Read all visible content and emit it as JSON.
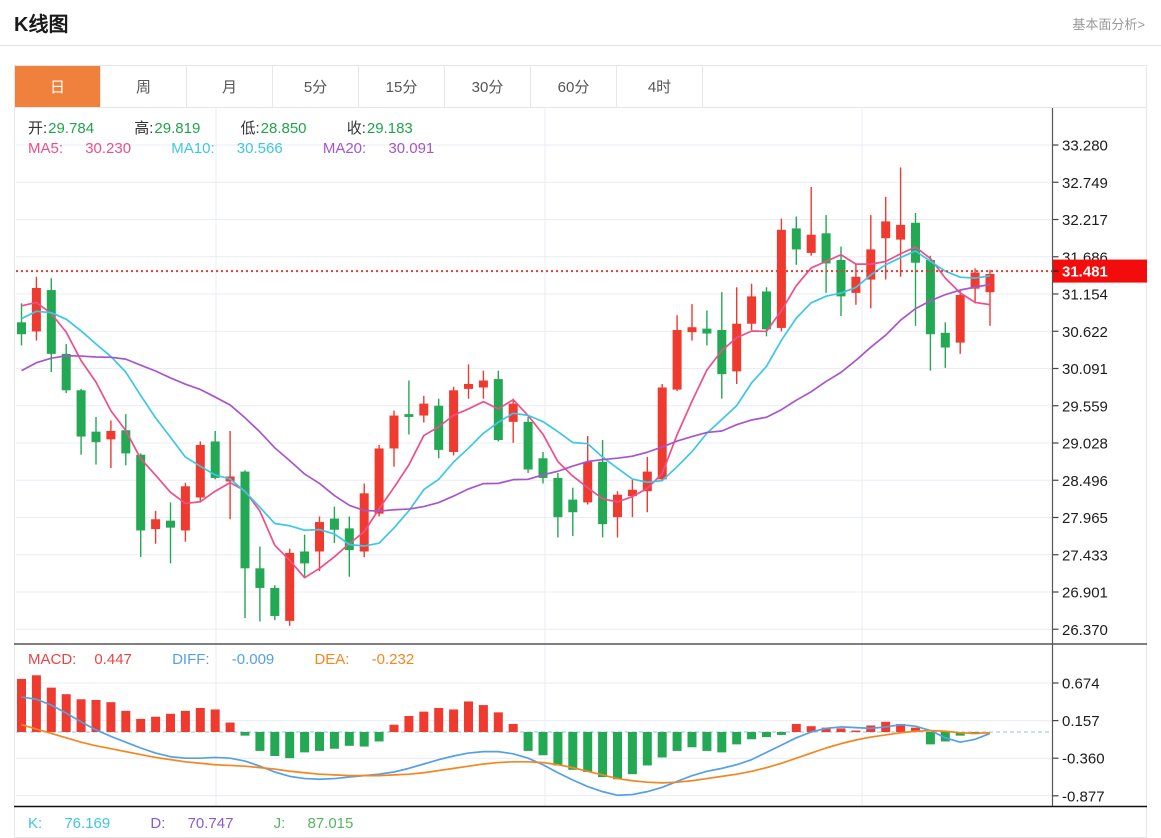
{
  "header": {
    "title": "K线图",
    "link": "基本面分析>"
  },
  "tabs": {
    "items": [
      "日",
      "周",
      "月",
      "5分",
      "15分",
      "30分",
      "60分",
      "4时"
    ],
    "active_index": 0
  },
  "legend": {
    "open_label": "开:",
    "open": "29.784",
    "high_label": "高:",
    "high": "29.819",
    "low_label": "低:",
    "low": "28.850",
    "close_label": "收:",
    "close": "29.183",
    "ma5_label": "MA5: ",
    "ma5": "30.230",
    "ma10_label": "MA10: ",
    "ma10": "30.566",
    "ma20_label": "MA20: ",
    "ma20": "30.091"
  },
  "macd_legend": {
    "macd_label": "MACD:",
    "macd": "0.447",
    "diff_label": "DIFF: ",
    "diff": "-0.009",
    "dea_label": "DEA: ",
    "dea": "-0.232"
  },
  "kdj_legend": {
    "k_label": "K: ",
    "k": "76.169",
    "d_label": "D: ",
    "d": "70.747",
    "j_label": "J: ",
    "j": "87.015"
  },
  "price_marker": {
    "value": "31.481"
  },
  "colors": {
    "up": "#ef3a2f",
    "down": "#23a854",
    "ma5": "#ec4f8c",
    "ma10": "#3cc6e8",
    "ma20": "#a656cc",
    "diff": "#54a0e8",
    "dea": "#f5861f",
    "price_line": "#f5352b",
    "price_label_bg": "#f20c0c",
    "grid": "#e9eef5",
    "vgrid": "#e9eef5",
    "axis_line": "#555555",
    "axis_text": "#1c1c1c",
    "pane_border": "#333333",
    "zero_dash": "#9fd4e8"
  },
  "chart_data": {
    "type": "candlestick",
    "title": "K线图 日K",
    "y_axis": {
      "ticks": [
        "33.280",
        "32.749",
        "32.217",
        "31.686",
        "31.154",
        "30.622",
        "30.091",
        "29.559",
        "29.028",
        "28.496",
        "27.965",
        "27.433",
        "26.901",
        "26.370"
      ],
      "max": 33.28,
      "min": 26.37,
      "step": 0.5315
    },
    "current_price": 31.481,
    "candles_ohlc_format": [
      "open",
      "close",
      "low",
      "high"
    ],
    "candles": [
      [
        30.75,
        30.58,
        30.42,
        31.02
      ],
      [
        30.62,
        31.24,
        30.49,
        31.4
      ],
      [
        31.21,
        30.3,
        30.04,
        31.38
      ],
      [
        30.3,
        29.78,
        29.74,
        30.44
      ],
      [
        29.78,
        29.12,
        28.86,
        29.8
      ],
      [
        29.19,
        29.04,
        28.72,
        29.4
      ],
      [
        29.08,
        29.2,
        28.67,
        29.35
      ],
      [
        29.21,
        28.88,
        28.71,
        29.44
      ],
      [
        28.86,
        27.78,
        27.4,
        28.88
      ],
      [
        27.8,
        27.94,
        27.59,
        28.06
      ],
      [
        27.92,
        27.82,
        27.31,
        28.18
      ],
      [
        27.78,
        28.41,
        27.62,
        28.46
      ],
      [
        28.25,
        29.0,
        28.18,
        29.05
      ],
      [
        29.05,
        28.53,
        28.51,
        29.2
      ],
      [
        28.48,
        28.55,
        27.94,
        29.2
      ],
      [
        28.62,
        27.24,
        26.53,
        28.64
      ],
      [
        27.24,
        26.96,
        26.48,
        27.55
      ],
      [
        26.96,
        26.56,
        26.5,
        27.0
      ],
      [
        26.49,
        27.46,
        26.42,
        27.52
      ],
      [
        27.48,
        27.31,
        27.1,
        27.72
      ],
      [
        27.48,
        27.9,
        27.2,
        27.98
      ],
      [
        27.95,
        27.79,
        27.6,
        28.12
      ],
      [
        27.81,
        27.5,
        27.12,
        27.98
      ],
      [
        27.48,
        28.31,
        27.4,
        28.45
      ],
      [
        28.02,
        28.95,
        27.98,
        29.0
      ],
      [
        28.95,
        29.42,
        28.69,
        29.49
      ],
      [
        29.44,
        29.4,
        29.15,
        29.92
      ],
      [
        29.42,
        29.59,
        29.32,
        29.7
      ],
      [
        29.56,
        28.93,
        28.81,
        29.66
      ],
      [
        28.9,
        29.78,
        28.85,
        29.83
      ],
      [
        29.8,
        29.87,
        29.66,
        30.15
      ],
      [
        29.82,
        29.92,
        29.66,
        30.06
      ],
      [
        29.94,
        29.07,
        29.05,
        30.06
      ],
      [
        29.33,
        29.59,
        29.03,
        29.66
      ],
      [
        29.33,
        28.65,
        28.6,
        29.4
      ],
      [
        28.81,
        28.53,
        28.45,
        28.9
      ],
      [
        28.53,
        27.97,
        27.68,
        28.6
      ],
      [
        28.22,
        28.04,
        27.7,
        28.39
      ],
      [
        28.18,
        28.76,
        28.15,
        29.13
      ],
      [
        28.76,
        27.87,
        27.68,
        29.07
      ],
      [
        27.97,
        28.29,
        27.68,
        28.34
      ],
      [
        28.27,
        28.36,
        27.97,
        28.5
      ],
      [
        28.34,
        28.62,
        28.04,
        28.83
      ],
      [
        28.51,
        29.82,
        28.48,
        29.87
      ],
      [
        29.79,
        30.64,
        29.77,
        30.85
      ],
      [
        30.61,
        30.68,
        30.49,
        31.01
      ],
      [
        30.66,
        30.59,
        30.42,
        30.92
      ],
      [
        30.64,
        30.01,
        29.66,
        31.18
      ],
      [
        30.05,
        30.73,
        29.87,
        31.25
      ],
      [
        30.73,
        31.12,
        30.64,
        31.3
      ],
      [
        31.19,
        30.65,
        30.55,
        31.25
      ],
      [
        30.67,
        32.07,
        30.62,
        32.23
      ],
      [
        32.09,
        31.79,
        31.57,
        32.26
      ],
      [
        31.74,
        32.0,
        31.7,
        32.68
      ],
      [
        32.02,
        31.59,
        31.17,
        32.28
      ],
      [
        31.64,
        31.12,
        30.84,
        31.83
      ],
      [
        31.17,
        31.4,
        31.0,
        31.59
      ],
      [
        31.36,
        31.79,
        30.95,
        32.28
      ],
      [
        31.95,
        32.19,
        31.36,
        32.54
      ],
      [
        31.93,
        32.14,
        31.4,
        32.96
      ],
      [
        32.17,
        31.6,
        30.7,
        32.31
      ],
      [
        31.64,
        30.58,
        30.06,
        31.7
      ],
      [
        30.6,
        30.39,
        30.1,
        30.75
      ],
      [
        30.46,
        31.14,
        30.3,
        31.2
      ],
      [
        31.23,
        31.46,
        31.02,
        31.52
      ],
      [
        31.18,
        31.44,
        30.7,
        31.5
      ]
    ],
    "ma_seed_closes": [
      29.0,
      29.0,
      29.1,
      29.2,
      29.3,
      29.3,
      29.4,
      29.5,
      29.6,
      29.8,
      30.2,
      30.5,
      30.7,
      30.8,
      30.9,
      31.0,
      31.1,
      31.1,
      31.15
    ],
    "ma_periods": [
      5,
      10,
      20
    ],
    "macd": {
      "y_axis": {
        "ticks": [
          "0.674",
          "0.157",
          "-0.360",
          "-0.877"
        ],
        "step": 0.517
      },
      "histogram": [
        0.73,
        0.78,
        0.61,
        0.52,
        0.45,
        0.44,
        0.41,
        0.29,
        0.18,
        0.21,
        0.25,
        0.29,
        0.33,
        0.31,
        0.13,
        -0.05,
        -0.26,
        -0.33,
        -0.36,
        -0.28,
        -0.26,
        -0.23,
        -0.19,
        -0.2,
        -0.13,
        0.1,
        0.22,
        0.28,
        0.33,
        0.31,
        0.42,
        0.37,
        0.27,
        0.11,
        -0.26,
        -0.32,
        -0.46,
        -0.52,
        -0.55,
        -0.62,
        -0.65,
        -0.58,
        -0.46,
        -0.35,
        -0.26,
        -0.21,
        -0.26,
        -0.28,
        -0.17,
        -0.1,
        -0.07,
        -0.04,
        0.11,
        0.08,
        0.06,
        0.05,
        0.02,
        0.09,
        0.14,
        0.11,
        0.06,
        -0.17,
        -0.13,
        -0.05,
        -0.03,
        0.0
      ],
      "diff": [
        0.48,
        0.45,
        0.37,
        0.26,
        0.14,
        0.03,
        -0.06,
        -0.14,
        -0.22,
        -0.29,
        -0.34,
        -0.36,
        -0.36,
        -0.35,
        -0.36,
        -0.4,
        -0.47,
        -0.55,
        -0.61,
        -0.64,
        -0.65,
        -0.64,
        -0.62,
        -0.6,
        -0.58,
        -0.55,
        -0.5,
        -0.44,
        -0.38,
        -0.33,
        -0.29,
        -0.27,
        -0.27,
        -0.3,
        -0.36,
        -0.45,
        -0.56,
        -0.66,
        -0.75,
        -0.82,
        -0.87,
        -0.86,
        -0.82,
        -0.76,
        -0.68,
        -0.6,
        -0.54,
        -0.5,
        -0.45,
        -0.38,
        -0.28,
        -0.18,
        -0.08,
        0.0,
        0.05,
        0.07,
        0.06,
        0.05,
        0.07,
        0.1,
        0.08,
        0.02,
        -0.08,
        -0.14,
        -0.1,
        -0.02
      ],
      "dea": [
        0.1,
        0.04,
        -0.02,
        -0.08,
        -0.14,
        -0.19,
        -0.23,
        -0.27,
        -0.31,
        -0.35,
        -0.38,
        -0.41,
        -0.43,
        -0.45,
        -0.46,
        -0.47,
        -0.49,
        -0.51,
        -0.54,
        -0.56,
        -0.58,
        -0.59,
        -0.6,
        -0.6,
        -0.6,
        -0.59,
        -0.58,
        -0.56,
        -0.53,
        -0.5,
        -0.47,
        -0.44,
        -0.42,
        -0.41,
        -0.41,
        -0.42,
        -0.45,
        -0.49,
        -0.54,
        -0.59,
        -0.64,
        -0.67,
        -0.69,
        -0.7,
        -0.69,
        -0.67,
        -0.64,
        -0.61,
        -0.58,
        -0.54,
        -0.49,
        -0.43,
        -0.36,
        -0.29,
        -0.22,
        -0.16,
        -0.11,
        -0.07,
        -0.04,
        -0.01,
        0.01,
        0.02,
        0.01,
        -0.01,
        -0.02,
        -0.01
      ]
    },
    "vertical_gridlines_x": [
      216,
      545,
      862
    ]
  }
}
